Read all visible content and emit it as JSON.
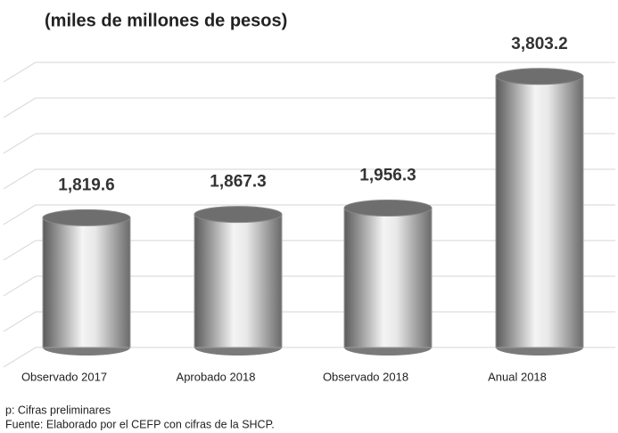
{
  "chart_data": {
    "type": "bar",
    "title": "(miles de millones de pesos)",
    "categories": [
      "Observado 2017",
      "Aprobado 2018",
      "Observado 2018",
      "Anual 2018"
    ],
    "values": [
      1819.6,
      1867.3,
      1956.3,
      3803.2
    ],
    "value_labels": [
      "1,819.6",
      "1,867.3",
      "1,956.3",
      "3,803.2"
    ],
    "color": "#9a9a9a",
    "ylim": [
      0,
      4000
    ],
    "yticks": [
      0,
      500,
      1000,
      1500,
      2000,
      2500,
      3000,
      3500,
      4000
    ],
    "grid": true,
    "notes": [
      "p: Cifras preliminares",
      "Fuente: Elaborado por el CEFP con cifras de la SHCP."
    ]
  }
}
